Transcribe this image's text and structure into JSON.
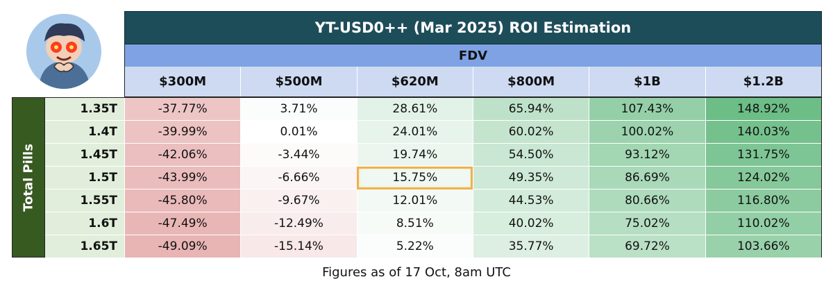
{
  "title": "YT-USD0++ (Mar 2025) ROI Estimation",
  "fdv_label": "FDV",
  "side_label": "Total Pills",
  "footnote": "Figures as of 17 Oct, 8am UTC",
  "columns": [
    "$300M",
    "$500M",
    "$620M",
    "$800M",
    "$1B",
    "$1.2B"
  ],
  "rows": [
    "1.35T",
    "1.4T",
    "1.45T",
    "1.5T",
    "1.55T",
    "1.6T",
    "1.65T"
  ],
  "highlight": {
    "row": 3,
    "col": 2
  },
  "colors": {
    "title_bg": "#1e4d5a",
    "fdv_bg": "#7ea2e3",
    "header_bg": "#cddaf2",
    "side_bg": "#375a21",
    "row_header_bg": "#e1eedb",
    "negative_max": "#e8b4b4",
    "positive_max": "#6cbd86",
    "highlight_border": "#f0b04a"
  },
  "chart_data": {
    "type": "table",
    "title": "YT-USD0++ (Mar 2025) ROI Estimation",
    "column_group": "FDV",
    "row_group": "Total Pills",
    "columns": [
      "$300M",
      "$500M",
      "$620M",
      "$800M",
      "$1B",
      "$1.2B"
    ],
    "rows": [
      "1.35T",
      "1.4T",
      "1.45T",
      "1.5T",
      "1.55T",
      "1.6T",
      "1.65T"
    ],
    "values": [
      [
        -37.77,
        3.71,
        28.61,
        65.94,
        107.43,
        148.92
      ],
      [
        -39.99,
        0.01,
        24.01,
        60.02,
        100.02,
        140.03
      ],
      [
        -42.06,
        -3.44,
        19.74,
        54.5,
        93.12,
        131.75
      ],
      [
        -43.99,
        -6.66,
        15.75,
        49.35,
        86.69,
        124.02
      ],
      [
        -45.8,
        -9.67,
        12.01,
        44.53,
        80.66,
        116.8
      ],
      [
        -47.49,
        -12.49,
        8.51,
        40.02,
        75.02,
        110.02
      ],
      [
        -49.09,
        -15.14,
        5.22,
        35.77,
        69.72,
        103.66
      ]
    ],
    "unit": "%"
  }
}
